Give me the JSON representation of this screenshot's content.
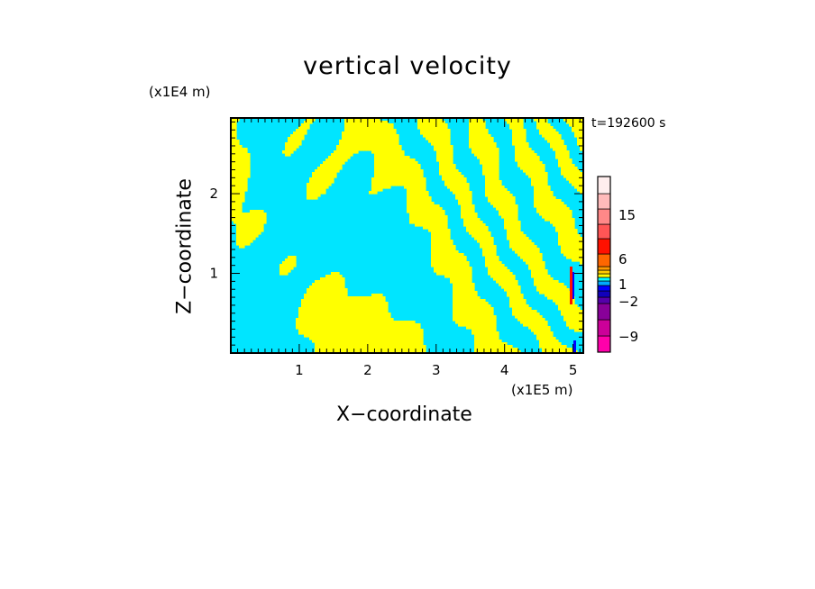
{
  "chart_data": {
    "type": "heatmap",
    "title": "vertical velocity",
    "xlabel": "X−coordinate",
    "ylabel": "Z−coordinate",
    "x_unit": "(x1E5 m)",
    "z_unit": "(x1E4 m)",
    "time_label": "t=192600 s",
    "xlim": [
      0,
      5.15
    ],
    "ylim": [
      0,
      2.95
    ],
    "x_ticks": [
      "1",
      "2",
      "3",
      "4",
      "5"
    ],
    "z_ticks": [
      "1",
      "2"
    ],
    "colorbar_labels": [
      "15",
      "6",
      "1",
      "−2",
      "−9"
    ],
    "colorbar_colors": [
      "#ff00aa",
      "#cc0099",
      "#880099",
      "#5500aa",
      "#1100bb",
      "#0000ff",
      "#00aaff",
      "#00ffff",
      "#ffff00",
      "#ffcc00",
      "#ff9900",
      "#ff6600",
      "#ff1100",
      "#ff5555",
      "#ff8888",
      "#ffbbbb",
      "#ffeeee"
    ],
    "dominant_colors": {
      "positive": "#ffff00",
      "negative": "#00e5ff"
    }
  }
}
